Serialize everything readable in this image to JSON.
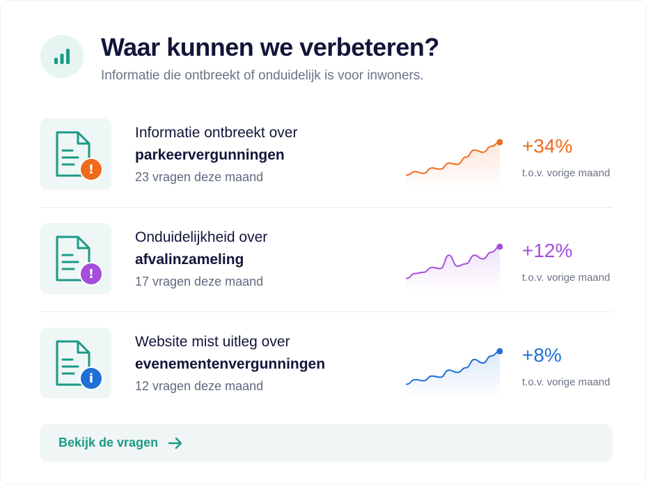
{
  "header": {
    "icon": "bar-chart-icon",
    "title": "Waar kunnen we verbeteren?",
    "subtitle": "Informatie die ontbreekt of onduidelijk is voor inwoners."
  },
  "items": [
    {
      "title_line1": "Informatie ontbreekt over",
      "title_line2": "parkeervergunningen",
      "meta": "23 vragen deze maand",
      "change": "+34%",
      "change_note": "t.o.v. vorige maand",
      "color": "#f06a1c",
      "badge_icon": "exclamation-icon",
      "badge_glyph": "!",
      "trend": [
        10,
        16,
        13,
        22,
        20,
        30,
        28,
        40,
        52,
        48,
        58,
        65
      ]
    },
    {
      "title_line1": "Onduidelijkheid over",
      "title_line2": "afvalinzameling",
      "meta": "17 vragen deze maand",
      "change": "+12%",
      "change_note": "t.o.v. vorige maand",
      "color": "#a64ddc",
      "badge_icon": "exclamation-icon",
      "badge_glyph": "!",
      "trend": [
        12,
        20,
        22,
        30,
        28,
        50,
        32,
        36,
        50,
        44,
        55,
        64
      ]
    },
    {
      "title_line1": "Website mist uitleg over",
      "title_line2": "evenementenvergunningen",
      "meta": "12 vragen deze maand",
      "change": "+8%",
      "change_note": "t.o.v. vorige maand",
      "color": "#1f6fd6",
      "badge_icon": "info-icon",
      "badge_glyph": "i",
      "trend": [
        10,
        18,
        16,
        24,
        22,
        34,
        30,
        38,
        52,
        46,
        58,
        66
      ]
    }
  ],
  "cta": {
    "label": "Bekijk de vragen",
    "icon": "arrow-right-icon",
    "color": "#1b9a86"
  },
  "colors": {
    "teal": "#1b9a86",
    "title": "#121539",
    "muted": "#6b7486"
  }
}
